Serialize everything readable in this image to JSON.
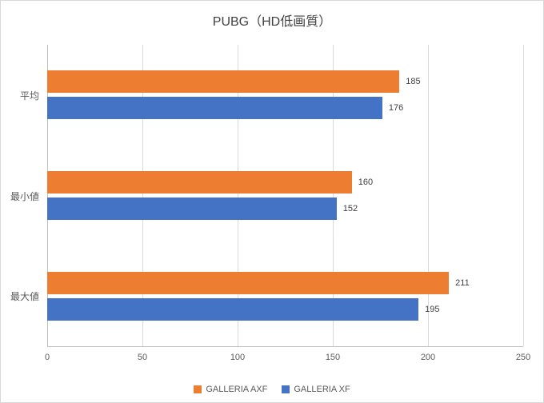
{
  "chart_data": {
    "type": "bar",
    "orientation": "horizontal",
    "title": "PUBG（HD低画質）",
    "categories": [
      "平均",
      "最小値",
      "最大値"
    ],
    "series": [
      {
        "name": "GALLERIA AXF",
        "color": "#ED7D31",
        "values": [
          185,
          160,
          211
        ]
      },
      {
        "name": "GALLERIA XF",
        "color": "#4472C4",
        "values": [
          176,
          152,
          195
        ]
      }
    ],
    "xlim": [
      0,
      250
    ],
    "xticks": [
      0,
      50,
      100,
      150,
      200,
      250
    ],
    "grid": "vertical",
    "legend_position": "bottom",
    "colors": {
      "gridline": "#d9d9d9",
      "axis_line": "#bfbfbf",
      "title_text": "#404040",
      "tick_text": "#595959",
      "value_text": "#404040"
    }
  }
}
